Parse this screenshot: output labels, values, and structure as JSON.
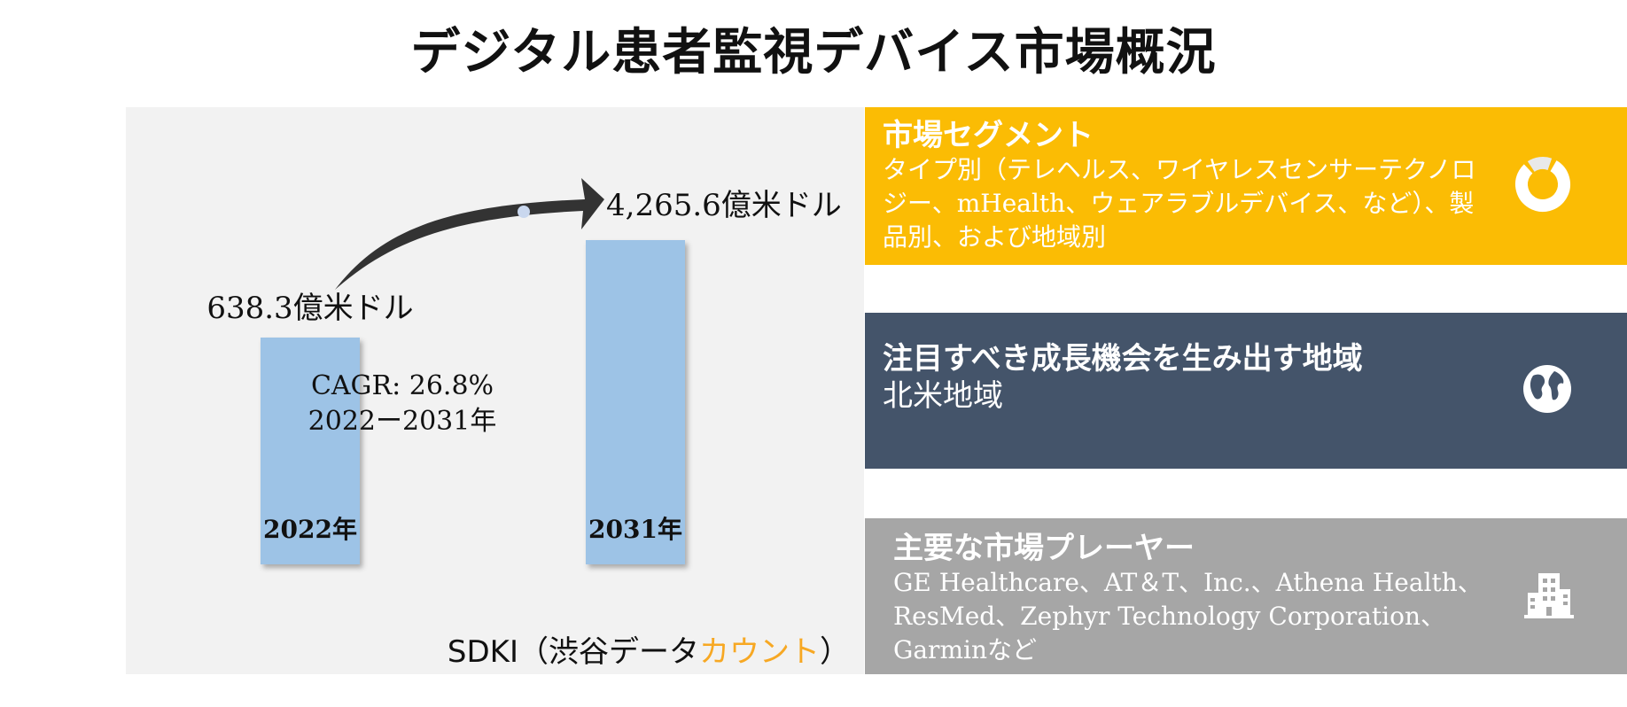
{
  "title": "デジタル患者監視デバイス市場概況",
  "chart_data": {
    "type": "bar",
    "categories": [
      "2022年",
      "2031年"
    ],
    "values": [
      638.3,
      4265.6
    ],
    "value_labels": [
      "638.3億米ドル",
      "4,265.6億米ドル"
    ],
    "unit": "億米ドル",
    "cagr_line1": "CAGR: 26.8%",
    "cagr_line2": "2022ー2031年"
  },
  "source": {
    "prefix": "SDKI（渋谷データ",
    "accent": "カウント",
    "suffix": "）"
  },
  "segments": {
    "heading": "市場セグメント",
    "text": "タイプ別（テレヘルス、ワイヤレスセンサーテクノロジー、mHealth、ウェアラブルデバイス、など）、製品別、および地域別",
    "icon": "donut-chart-icon",
    "color": "#fbbc04"
  },
  "region": {
    "heading": "注目すべき成長機会を生み出す地域",
    "text": "北米地域",
    "icon": "globe-icon",
    "color": "#44546a"
  },
  "players": {
    "heading": "主要な市場プレーヤー",
    "text": "GE Healthcare、AT＆T、Inc.、Athena Health、ResMed、Zephyr Technology Corporation、Garminなど",
    "icon": "building-icon",
    "color": "#a6a6a6"
  }
}
